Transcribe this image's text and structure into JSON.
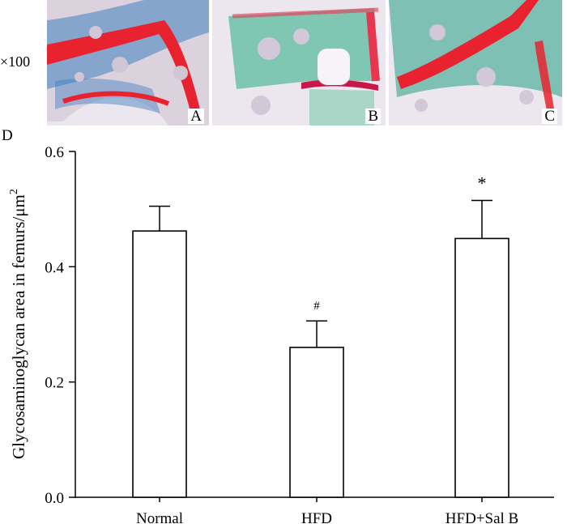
{
  "magnification": "×100",
  "panels": [
    {
      "letter": "A",
      "stain_color": "#e8232f",
      "background_stain": "#3f7fbf"
    },
    {
      "letter": "B",
      "stain_color": "#e8364f",
      "background_stain": "#6cc0a8"
    },
    {
      "letter": "C",
      "stain_color": "#e8232f",
      "background_stain": "#5ab3a0"
    }
  ],
  "figure_label": "D",
  "chart_data": {
    "type": "bar",
    "categories": [
      "Normal",
      "HFD",
      "HFD+Sal B"
    ],
    "values": [
      0.462,
      0.26,
      0.449
    ],
    "errors": [
      0.043,
      0.046,
      0.066
    ],
    "markers": [
      "",
      "#",
      "*"
    ],
    "ylabel_main": "Glycosaminoglycan area in femurs/μm",
    "ylabel_sup": "2",
    "ylim": [
      0.0,
      0.6
    ],
    "yticks": [
      "0.0",
      "0.2",
      "0.4",
      "0.6"
    ],
    "xlabel": "",
    "bar_fill": "#ffffff",
    "bar_stroke": "#000000"
  }
}
